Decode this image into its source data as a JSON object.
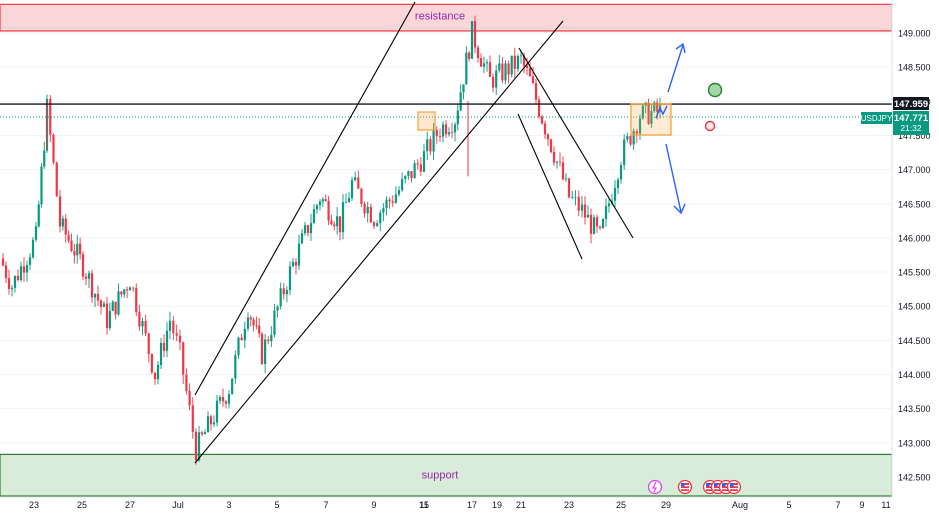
{
  "symbol_tag": {
    "label": "USDJPY",
    "price": "147.771",
    "countdown": "21:32",
    "color": "#089981"
  },
  "level_tag": {
    "price": "147.959",
    "color": "#131722"
  },
  "zones": {
    "resistance": {
      "label": "resistance",
      "price_range": [
        149.03,
        149.42
      ],
      "fill": "#f9d7d9",
      "border": "#f23645",
      "text_color": "#9c27b0"
    },
    "support": {
      "label": "support",
      "price_range": [
        142.2,
        142.83
      ],
      "fill": "#d8ecd9",
      "border": "#2e7d32",
      "text_color": "#9c27b0"
    }
  },
  "colors": {
    "up": "#089981",
    "down": "#f23645",
    "arrow": "#2962ff",
    "box": "#f7a23c",
    "line": "#000000"
  },
  "event_icons": [
    "lightning-icon",
    "us-flag-icon",
    "us-flag-icon",
    "us-flag-icon",
    "us-flag-icon",
    "us-flag-icon"
  ],
  "chart_data": {
    "type": "candlestick",
    "symbol": "USDJPY",
    "ylim": [
      142.2,
      149.42
    ],
    "y_ticks": [
      "149.000",
      "148.500",
      "148.000",
      "147.500",
      "147.000",
      "146.500",
      "146.000",
      "145.500",
      "145.000",
      "144.500",
      "144.000",
      "143.500",
      "143.000",
      "142.500"
    ],
    "x_ticks": [
      "23",
      "25",
      "27",
      "Jul",
      "3",
      "5",
      "7",
      "9",
      "11",
      "15",
      "17",
      "19",
      "21",
      "23",
      "25",
      "29",
      "Aug",
      "5",
      "7",
      "9",
      "11"
    ],
    "horizontal_level": 147.959,
    "last_price": 147.771,
    "anchors": [
      {
        "x": "Jun 20",
        "close": 145.7
      },
      {
        "x": "Jun 21",
        "close": 145.3
      },
      {
        "x": "Jun 22",
        "close": 146.0
      },
      {
        "x": "Jun 23",
        "close": 147.9
      },
      {
        "x": "Jun 24",
        "close": 146.2
      },
      {
        "x": "Jun 25",
        "close": 145.6
      },
      {
        "x": "Jun 26",
        "close": 144.8
      },
      {
        "x": "Jun 27",
        "close": 145.4
      },
      {
        "x": "Jun 28",
        "close": 144.0
      },
      {
        "x": "Jun 29",
        "close": 144.8
      },
      {
        "x": "Jun 30",
        "close": 144.3
      },
      {
        "x": "Jul 1",
        "close": 142.9
      },
      {
        "x": "Jul 2",
        "close": 143.8
      },
      {
        "x": "Jul 3",
        "close": 145.0
      },
      {
        "x": "Jul 4",
        "close": 144.3
      },
      {
        "x": "Jul 5",
        "close": 145.5
      },
      {
        "x": "Jul 6",
        "close": 146.6
      },
      {
        "x": "Jul 7",
        "close": 146.2
      },
      {
        "x": "Jul 8",
        "close": 146.8
      },
      {
        "x": "Jul 9",
        "close": 146.3
      },
      {
        "x": "Jul 10",
        "close": 146.7
      },
      {
        "x": "Jul 11",
        "close": 147.2
      },
      {
        "x": "Jul 12",
        "close": 147.6
      },
      {
        "x": "Jul 13",
        "close": 147.75
      },
      {
        "x": "Jul 14",
        "close": 149.0
      },
      {
        "x": "Jul 15",
        "close": 148.3
      },
      {
        "x": "Jul 16",
        "close": 148.6
      },
      {
        "x": "Jul 17",
        "close": 148.3
      },
      {
        "x": "Jul 18",
        "close": 147.5
      },
      {
        "x": "Jul 19",
        "close": 146.6
      },
      {
        "x": "Jul 20",
        "close": 146.4
      },
      {
        "x": "Jul 21",
        "close": 146.0
      },
      {
        "x": "Jul 22",
        "close": 147.2
      },
      {
        "x": "Jul 23",
        "close": 147.8
      },
      {
        "x": "Jul 24",
        "close": 147.85
      }
    ],
    "annotations": [
      "resistance",
      "support",
      "bull-arrow",
      "bear-arrow",
      "target-circle",
      "stop-circle"
    ]
  }
}
